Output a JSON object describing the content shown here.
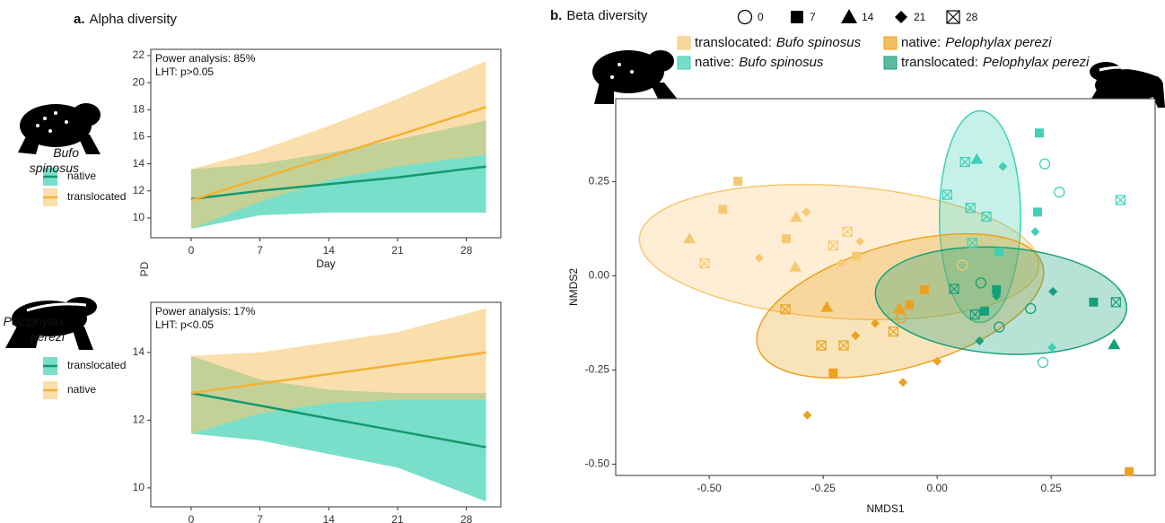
{
  "chart_data": [
    {
      "type": "line-band",
      "panel": "a.",
      "title": "Alpha diversity",
      "species": "Bufo spinosus",
      "annotations": [
        "Power analysis: 85%",
        "LHT: p>0.05"
      ],
      "xlabel": "Day",
      "ylabel": "PD",
      "x": [
        0,
        7,
        14,
        21,
        30
      ],
      "series": [
        {
          "name": "native",
          "color": "#13996f",
          "band_color": "#1fc9a6",
          "values": [
            11.4,
            12.0,
            12.5,
            13.0,
            13.8
          ],
          "lower": [
            9.2,
            10.2,
            10.4,
            10.4,
            10.4
          ],
          "upper": [
            13.6,
            14.0,
            14.8,
            15.8,
            17.2
          ]
        },
        {
          "name": "translocated",
          "color": "#f2b233",
          "band_color": "#f7c873",
          "values": [
            11.3,
            12.9,
            14.5,
            16.1,
            18.2
          ],
          "lower": [
            9.2,
            11.2,
            12.8,
            13.8,
            14.7
          ],
          "upper": [
            13.6,
            15.0,
            16.8,
            18.8,
            21.6
          ]
        }
      ],
      "xlim": [
        -4.1,
        31.5
      ],
      "xticks": [
        0,
        7,
        14,
        21,
        28
      ],
      "ylim": [
        8.54,
        22.46
      ],
      "yticks": [
        10,
        12,
        14,
        16,
        18,
        20,
        22
      ]
    },
    {
      "type": "line-band",
      "species": "Pelophylax perezi",
      "annotations": [
        "Power analysis: 17%",
        "LHT: p<0.05"
      ],
      "xlabel": "Day",
      "x": [
        0,
        7,
        14,
        21,
        30
      ],
      "series": [
        {
          "name": "translocated",
          "color": "#13996f",
          "band_color": "#1fc9a6",
          "values": [
            12.8,
            12.43,
            12.05,
            11.68,
            11.2
          ],
          "lower": [
            11.6,
            11.4,
            11.0,
            10.6,
            9.6
          ],
          "upper": [
            13.9,
            13.2,
            12.9,
            12.8,
            12.8
          ]
        },
        {
          "name": "native",
          "color": "#f2b233",
          "band_color": "#f7c873",
          "values": [
            12.8,
            13.08,
            13.36,
            13.64,
            14.0
          ],
          "lower": [
            11.6,
            12.2,
            12.5,
            12.6,
            12.6
          ],
          "upper": [
            13.9,
            14.0,
            14.3,
            14.6,
            15.3
          ]
        }
      ],
      "xlim": [
        -4.1,
        31.5
      ],
      "xticks": [
        0,
        7,
        14,
        21,
        28
      ],
      "ylim": [
        9.44,
        15.48
      ],
      "yticks": [
        10,
        12,
        14
      ]
    },
    {
      "type": "scatter-ellipse",
      "panel": "b.",
      "title": "Beta diversity",
      "xlabel": "NMDS1",
      "ylabel": "NMDS2",
      "day_shapes": [
        0,
        7,
        14,
        21,
        28
      ],
      "series": [
        {
          "name": "translocated:",
          "species": "Bufo spinosus",
          "color": "#f7c873",
          "x": [
            -0.437,
            -0.47,
            -0.331,
            -0.177,
            -0.543,
            -0.311,
            -0.309,
            -0.287,
            -0.39,
            -0.169,
            -0.211,
            -0.51,
            -0.197,
            -0.228,
            0.055
          ],
          "values": [
            0.251,
            0.176,
            0.098,
            0.052,
            0.098,
            0.023,
            0.155,
            0.169,
            0.047,
            0.091,
            0.033,
            0.033,
            0.117,
            0.08,
            0.028
          ],
          "days": [
            7,
            7,
            7,
            7,
            14,
            14,
            14,
            21,
            21,
            21,
            21,
            28,
            28,
            28,
            0
          ],
          "ellipse": {
            "center": [
              -0.215,
              0.063
            ],
            "radii": [
              0.439,
              0.176
            ],
            "angle": 4
          }
        },
        {
          "name": "native:",
          "species": "Bufo spinosus",
          "color": "#3fd0b6",
          "x": [
            0.224,
            0.22,
            0.136,
            0.087,
            0.144,
            0.215,
            0.252,
            0.061,
            0.073,
            0.022,
            0.108,
            0.077,
            0.402,
            0.236,
            0.268,
            0.232
          ],
          "values": [
            0.379,
            0.169,
            0.063,
            0.309,
            0.29,
            0.117,
            -0.19,
            0.302,
            0.18,
            0.215,
            0.157,
            0.087,
            0.201,
            0.297,
            0.222,
            -0.23
          ],
          "days": [
            7,
            7,
            7,
            14,
            21,
            21,
            21,
            28,
            28,
            28,
            28,
            28,
            28,
            0,
            0,
            0
          ],
          "ellipse": {
            "center": [
              0.094,
              0.157
            ],
            "radii": [
              0.089,
              0.281
            ],
            "angle": 0
          }
        },
        {
          "name": "native:",
          "species": "Pelophylax perezi",
          "color": "#eba21f",
          "x": [
            -0.028,
            -0.061,
            -0.228,
            0.421,
            -0.083,
            -0.242,
            -0.285,
            -0.075,
            -0.136,
            -0.179,
            0.0,
            -0.333,
            -0.254,
            -0.205,
            -0.096,
            -0.079
          ],
          "values": [
            -0.037,
            -0.077,
            -0.258,
            -0.52,
            -0.087,
            -0.084,
            -0.37,
            -0.283,
            -0.126,
            -0.159,
            -0.227,
            -0.089,
            -0.185,
            -0.185,
            -0.148,
            -0.112
          ],
          "days": [
            7,
            7,
            7,
            7,
            14,
            14,
            21,
            21,
            21,
            21,
            21,
            28,
            28,
            28,
            28,
            0
          ],
          "ellipse": {
            "center": [
              -0.081,
              -0.08
            ],
            "radii": [
              0.325,
              0.164
            ],
            "angle": -16
          }
        },
        {
          "name": "translocated:",
          "species": "Pelophylax perezi",
          "color": "#16a07a",
          "x": [
            0.343,
            0.104,
            0.13,
            0.388,
            0.254,
            0.13,
            0.093,
            0.392,
            0.037,
            0.083,
            0.096,
            0.136,
            0.205
          ],
          "values": [
            -0.07,
            -0.094,
            -0.037,
            -0.183,
            -0.042,
            -0.054,
            -0.173,
            -0.07,
            -0.035,
            -0.103,
            -0.019,
            -0.136,
            -0.087
          ],
          "days": [
            7,
            7,
            7,
            14,
            21,
            21,
            21,
            28,
            28,
            28,
            0,
            0,
            0
          ],
          "ellipse": {
            "center": [
              0.14,
              -0.066
            ],
            "radii": [
              0.276,
              0.141
            ],
            "angle": 4
          }
        }
      ],
      "xlim": [
        -0.705,
        0.478
      ],
      "xticks": [
        {
          "value": -0.5,
          "label": "-0.50"
        },
        {
          "value": -0.25,
          "label": "-0.25"
        },
        {
          "value": 0,
          "label": "0.00"
        },
        {
          "value": 0.25,
          "label": "0.25"
        }
      ],
      "ylim": [
        -0.53,
        0.47
      ],
      "yticks": [
        {
          "value": -0.5,
          "label": "-0.50"
        },
        {
          "value": -0.25,
          "label": "-0.25"
        },
        {
          "value": 0,
          "label": "0.00"
        },
        {
          "value": 0.25,
          "label": "0.25"
        }
      ]
    }
  ]
}
